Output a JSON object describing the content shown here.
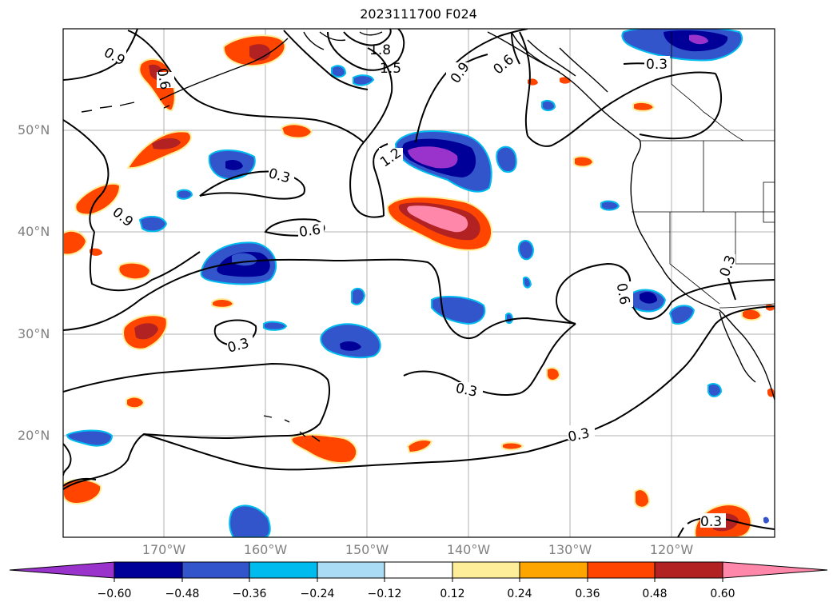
{
  "title": "2023111700 F024",
  "lat_labels": [
    "50°N",
    "40°N",
    "30°N",
    "20°N"
  ],
  "lon_labels": [
    "170°W",
    "160°W",
    "150°W",
    "140°W",
    "130°W",
    "120°W"
  ],
  "contour_labels": [
    "0.9",
    "0.6",
    "1.8",
    "1.5",
    "0.9",
    "0.6",
    "0.3",
    "1.2",
    "0.3",
    "0.9",
    "0.6",
    "0.6",
    "0.3",
    "0.3",
    "0.3",
    "0.3",
    "0.3"
  ],
  "colorbar": {
    "tick_labels": [
      "−0.60",
      "−0.48",
      "−0.36",
      "−0.24",
      "−0.12",
      "0.12",
      "0.24",
      "0.36",
      "0.48",
      "0.60"
    ],
    "colors": [
      "#9933cc",
      "#000099",
      "#3355cc",
      "#00bbee",
      "#aaddf5",
      "#ffffff",
      "#ffee99",
      "#ffa500",
      "#ff4500",
      "#b22222",
      "#ff88aa"
    ]
  }
}
